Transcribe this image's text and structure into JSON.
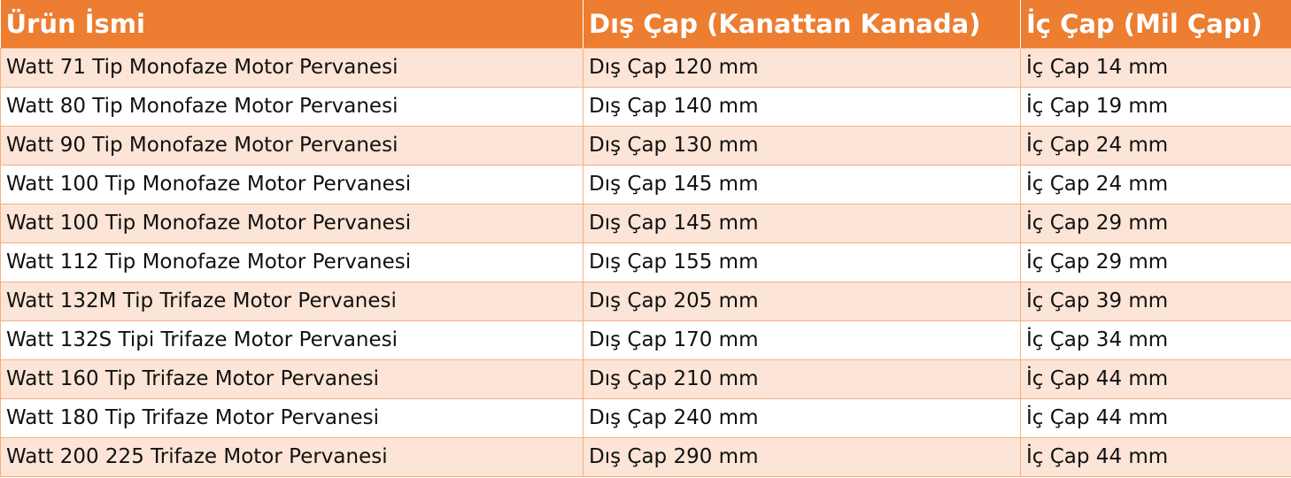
{
  "table": {
    "header": [
      "Ürün İsmi",
      "Dış Çap (Kanattan Kanada)",
      "İç Çap (Mil Çapı)"
    ],
    "rows": [
      [
        "Watt 71 Tip Monofaze Motor Pervanesi",
        "Dış Çap 120 mm",
        "İç Çap 14 mm"
      ],
      [
        "Watt 80 Tip Monofaze Motor Pervanesi",
        "Dış Çap 140 mm",
        "İç Çap 19 mm"
      ],
      [
        "Watt 90 Tip Monofaze Motor Pervanesi",
        "Dış Çap 130 mm",
        "İç Çap 24 mm"
      ],
      [
        "Watt 100 Tip Monofaze Motor Pervanesi",
        "Dış Çap 145 mm",
        "İç Çap 24 mm"
      ],
      [
        "Watt 100 Tip Monofaze Motor Pervanesi",
        "Dış Çap 145 mm",
        "İç Çap 29 mm"
      ],
      [
        "Watt 112 Tip Monofaze Motor Pervanesi",
        "Dış Çap 155 mm",
        "İç Çap 29 mm"
      ],
      [
        "Watt 132M Tip Trifaze Motor Pervanesi",
        "Dış Çap 205 mm",
        "İç Çap 39 mm"
      ],
      [
        "Watt 132S Tipi Trifaze Motor Pervanesi",
        "Dış Çap 170 mm",
        "İç Çap 34 mm"
      ],
      [
        "Watt 160 Tip Trifaze Motor Pervanesi",
        "Dış Çap 210 mm",
        "İç Çap 44 mm"
      ],
      [
        "Watt 180 Tip Trifaze Motor Pervanesi",
        "Dış Çap 240 mm",
        "İç Çap 44 mm"
      ],
      [
        "Watt 200 225 Trifaze Motor Pervanesi",
        "Dış Çap 290 mm",
        "İç Çap 44 mm"
      ]
    ]
  }
}
